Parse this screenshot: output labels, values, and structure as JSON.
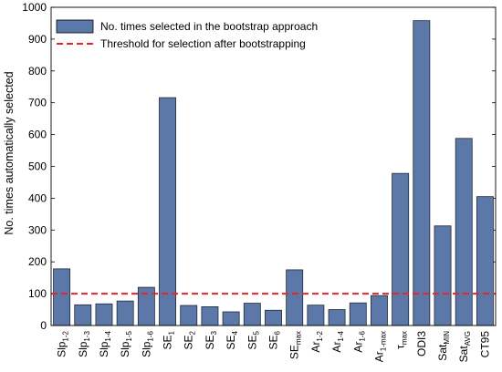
{
  "chart_data": {
    "type": "bar",
    "ylabel": "No. times automatically selected",
    "ylim": [
      0,
      1000
    ],
    "yticks": [
      0,
      100,
      200,
      300,
      400,
      500,
      600,
      700,
      800,
      900,
      1000
    ],
    "categories": [
      {
        "id": "slp12",
        "base": "Slp",
        "sub": "1-2"
      },
      {
        "id": "slp13",
        "base": "Slp",
        "sub": "1-3"
      },
      {
        "id": "slp14",
        "base": "Slp",
        "sub": "1-4"
      },
      {
        "id": "slp15",
        "base": "Slp",
        "sub": "1-5"
      },
      {
        "id": "slp16",
        "base": "Slp",
        "sub": "1-6"
      },
      {
        "id": "se1",
        "base": "SE",
        "sub": "1"
      },
      {
        "id": "se2",
        "base": "SE",
        "sub": "2"
      },
      {
        "id": "se3",
        "base": "SE",
        "sub": "3"
      },
      {
        "id": "se4",
        "base": "SE",
        "sub": "4"
      },
      {
        "id": "se5",
        "base": "SE",
        "sub": "5"
      },
      {
        "id": "se6",
        "base": "SE",
        "sub": "6"
      },
      {
        "id": "semax",
        "base": "SE",
        "sub": "max"
      },
      {
        "id": "ar12",
        "base": "Ar",
        "sub": "1-2"
      },
      {
        "id": "ar14",
        "base": "Ar",
        "sub": "1-4"
      },
      {
        "id": "ar16",
        "base": "Ar",
        "sub": "1-6"
      },
      {
        "id": "ar1max",
        "base": "Ar",
        "sub": "1-max"
      },
      {
        "id": "taumax",
        "base": "τ",
        "sub": "max"
      },
      {
        "id": "odi3",
        "base": "ODI3",
        "sub": ""
      },
      {
        "id": "satmin",
        "base": "Sat",
        "sub": "MIN"
      },
      {
        "id": "satavg",
        "base": "Sat",
        "sub": "AVG"
      },
      {
        "id": "ct95",
        "base": "CT95",
        "sub": ""
      }
    ],
    "series": [
      {
        "name": "No. times selected in the bootstrap approach",
        "color": "#5b78a8",
        "values": [
          178,
          65,
          68,
          77,
          120,
          716,
          63,
          59,
          43,
          70,
          48,
          175,
          64,
          50,
          71,
          94,
          478,
          958,
          313,
          588,
          405
        ]
      }
    ],
    "threshold": {
      "name": "Threshold for selection after bootstrapping",
      "value": 100,
      "color": "#e8242a"
    },
    "legend_position": "top-left",
    "grid": false
  }
}
